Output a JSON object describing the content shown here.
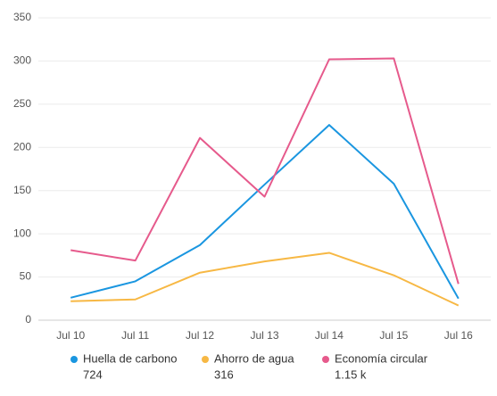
{
  "chart_data": {
    "type": "line",
    "categories": [
      "Jul 10",
      "Jul 11",
      "Jul 12",
      "Jul 13",
      "Jul 14",
      "Jul 15",
      "Jul 16"
    ],
    "series": [
      {
        "name": "Huella de carbono",
        "color": "#1a96e0",
        "values": [
          26,
          45,
          87,
          157,
          226,
          158,
          25
        ],
        "total": 724
      },
      {
        "name": "Ahorro de agua",
        "color": "#f7b844",
        "values": [
          22,
          24,
          55,
          68,
          78,
          52,
          17
        ],
        "total": 316
      },
      {
        "name": "Economía circular",
        "color": "#e65a8c",
        "values": [
          81,
          69,
          211,
          143,
          302,
          303,
          42
        ],
        "total": {
          "value": 1150,
          "label": "1.15 k"
        }
      }
    ],
    "ylim": [
      0,
      350
    ],
    "yticks": [
      0,
      50,
      100,
      150,
      200,
      250,
      300,
      350
    ],
    "grid": true
  }
}
